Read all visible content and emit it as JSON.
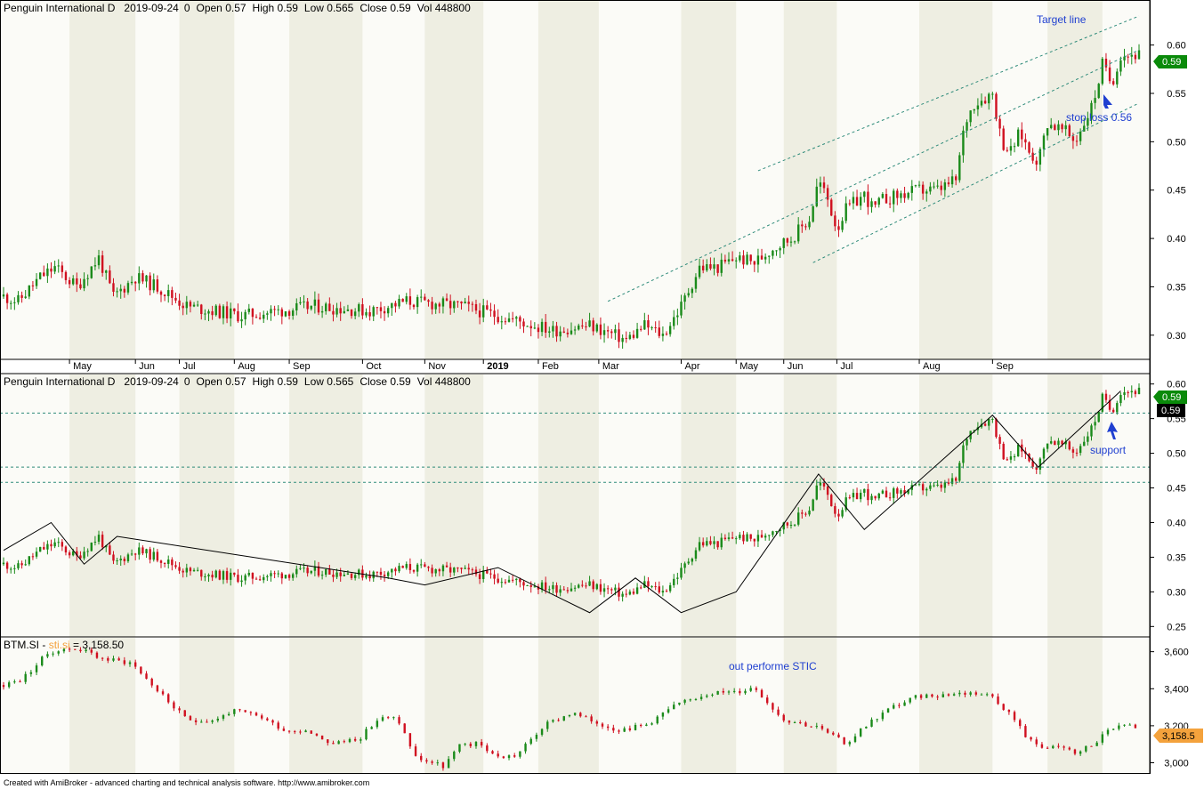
{
  "panes": [
    {
      "title": "Penguin International D",
      "info_date": "2019-09-24",
      "info_flag": "0",
      "info_open": "Open 0.57",
      "info_high": "High 0.59",
      "info_low": "Low 0.565",
      "info_close": "Close 0.59",
      "info_vol": "Vol 448800",
      "annotations": [
        "Target line",
        "stop loss 0.56"
      ],
      "price_tag": "0.59"
    },
    {
      "title": "Penguin International D",
      "info_date": "2019-09-24",
      "info_flag": "0",
      "info_open": "Open 0.57",
      "info_high": "High 0.59",
      "info_low": "Low 0.565",
      "info_close": "Close 0.59",
      "info_vol": "Vol 448800",
      "annotations": [
        "support"
      ],
      "price_tag": "0.59",
      "price_tag2": "0.59"
    },
    {
      "title_symbol": "BTM.SI",
      "title_sep": " - ",
      "title_symbol2": "sti.si",
      "title_value": " = 3,158.50",
      "annotations": [
        "out performe STIC"
      ],
      "price_tag": "3,158.5"
    }
  ],
  "footer": "Created with AmiBroker - advanced charting and technical analysis software. http://www.amibroker.com",
  "colors": {
    "up": "#1a8a1a",
    "down": "#d01020",
    "line": "#2e8b7a",
    "tag_green": "#0a8a0a",
    "tag_orange": "#f4a23c",
    "annotation": "#1f3fd0"
  },
  "chart_data": [
    {
      "type": "candlestick",
      "title": "Penguin International D",
      "x_labels": [
        "May",
        "Jun",
        "Jul",
        "Aug",
        "Sep",
        "Oct",
        "Nov",
        "2019",
        "Feb",
        "Mar",
        "Apr",
        "May",
        "Jun",
        "Jul",
        "Aug",
        "Sep"
      ],
      "y_ticks": [
        "0.60",
        "0.55",
        "0.50",
        "0.45",
        "0.40",
        "0.35",
        "0.30"
      ],
      "ylim": [
        0.275,
        0.63
      ],
      "price_path": [
        [
          0,
          0.34
        ],
        [
          8,
          0.335
        ],
        [
          20,
          0.36
        ],
        [
          28,
          0.37
        ],
        [
          40,
          0.35
        ],
        [
          52,
          0.38
        ],
        [
          60,
          0.34
        ],
        [
          72,
          0.36
        ],
        [
          84,
          0.35
        ],
        [
          100,
          0.33
        ],
        [
          130,
          0.32
        ],
        [
          170,
          0.33
        ],
        [
          200,
          0.325
        ],
        [
          220,
          0.335
        ],
        [
          250,
          0.33
        ],
        [
          270,
          0.32
        ],
        [
          300,
          0.305
        ],
        [
          320,
          0.31
        ],
        [
          340,
          0.295
        ],
        [
          350,
          0.31
        ],
        [
          360,
          0.3
        ],
        [
          370,
          0.33
        ],
        [
          380,
          0.37
        ],
        [
          390,
          0.37
        ],
        [
          400,
          0.38
        ],
        [
          410,
          0.375
        ],
        [
          420,
          0.39
        ],
        [
          430,
          0.4
        ],
        [
          440,
          0.42
        ],
        [
          445,
          0.46
        ],
        [
          450,
          0.44
        ],
        [
          455,
          0.41
        ],
        [
          460,
          0.43
        ],
        [
          470,
          0.445
        ],
        [
          475,
          0.43
        ],
        [
          480,
          0.44
        ],
        [
          490,
          0.445
        ],
        [
          500,
          0.45
        ],
        [
          510,
          0.45
        ],
        [
          520,
          0.46
        ],
        [
          525,
          0.52
        ],
        [
          530,
          0.54
        ],
        [
          540,
          0.55
        ],
        [
          545,
          0.5
        ],
        [
          550,
          0.49
        ],
        [
          555,
          0.51
        ],
        [
          560,
          0.49
        ],
        [
          565,
          0.48
        ],
        [
          570,
          0.52
        ],
        [
          580,
          0.51
        ],
        [
          585,
          0.5
        ],
        [
          590,
          0.52
        ],
        [
          595,
          0.54
        ],
        [
          600,
          0.58
        ],
        [
          605,
          0.56
        ],
        [
          610,
          0.59
        ]
      ],
      "trend_lines": [
        "Target line",
        "channel middle",
        "channel lower"
      ]
    },
    {
      "type": "candlestick",
      "title": "Penguin International D",
      "y_ticks": [
        "0.60",
        "0.55",
        "0.50",
        "0.45",
        "0.40",
        "0.35",
        "0.30",
        "0.25"
      ],
      "ylim": [
        0.235,
        0.615
      ],
      "horizontal_levels": [
        0.558,
        0.48,
        0.458
      ],
      "zigzag": [
        [
          0,
          0.36
        ],
        [
          26,
          0.4
        ],
        [
          44,
          0.34
        ],
        [
          62,
          0.38
        ],
        [
          210,
          0.32
        ],
        [
          230,
          0.31
        ],
        [
          270,
          0.335
        ],
        [
          320,
          0.27
        ],
        [
          345,
          0.32
        ],
        [
          370,
          0.27
        ],
        [
          400,
          0.3
        ],
        [
          445,
          0.47
        ],
        [
          470,
          0.39
        ],
        [
          540,
          0.555
        ],
        [
          565,
          0.48
        ],
        [
          610,
          0.59
        ]
      ]
    },
    {
      "type": "candlestick",
      "title": "BTM.SI - sti.si = 3,158.50",
      "y_ticks": [
        "3,600",
        "3,400",
        "3,200",
        "3,000"
      ],
      "ylim": [
        2940,
        3680
      ],
      "price_path": [
        [
          0,
          3420
        ],
        [
          10,
          3450
        ],
        [
          25,
          3600
        ],
        [
          40,
          3620
        ],
        [
          55,
          3560
        ],
        [
          70,
          3540
        ],
        [
          85,
          3380
        ],
        [
          100,
          3230
        ],
        [
          115,
          3230
        ],
        [
          125,
          3280
        ],
        [
          140,
          3250
        ],
        [
          155,
          3170
        ],
        [
          165,
          3180
        ],
        [
          180,
          3100
        ],
        [
          195,
          3140
        ],
        [
          205,
          3240
        ],
        [
          215,
          3240
        ],
        [
          225,
          3030
        ],
        [
          240,
          2980
        ],
        [
          250,
          3100
        ],
        [
          260,
          3100
        ],
        [
          270,
          3030
        ],
        [
          280,
          3040
        ],
        [
          295,
          3200
        ],
        [
          310,
          3270
        ],
        [
          320,
          3230
        ],
        [
          335,
          3180
        ],
        [
          350,
          3200
        ],
        [
          365,
          3300
        ],
        [
          385,
          3380
        ],
        [
          400,
          3380
        ],
        [
          410,
          3410
        ],
        [
          425,
          3240
        ],
        [
          445,
          3190
        ],
        [
          460,
          3100
        ],
        [
          470,
          3200
        ],
        [
          485,
          3300
        ],
        [
          500,
          3360
        ],
        [
          515,
          3370
        ],
        [
          530,
          3380
        ],
        [
          540,
          3360
        ],
        [
          550,
          3260
        ],
        [
          560,
          3120
        ],
        [
          570,
          3080
        ],
        [
          580,
          3080
        ],
        [
          585,
          3050
        ],
        [
          595,
          3100
        ],
        [
          605,
          3190
        ],
        [
          615,
          3200
        ],
        [
          620,
          3158.5
        ]
      ]
    }
  ]
}
